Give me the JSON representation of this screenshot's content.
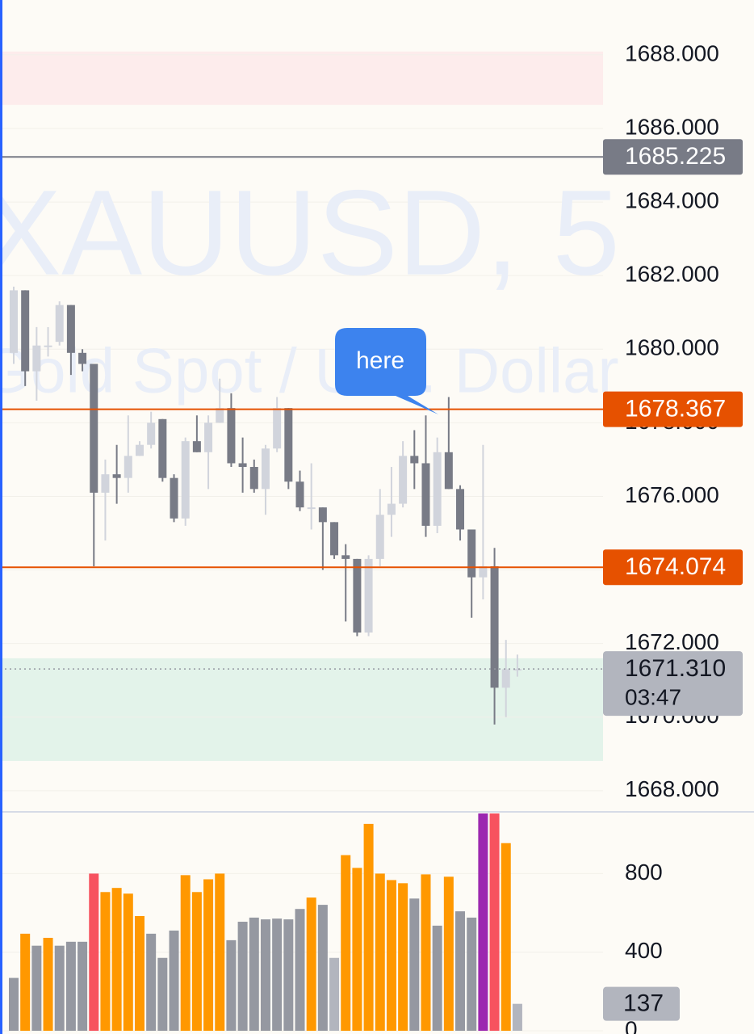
{
  "watermark": {
    "symbol": "XAUUSD, 5",
    "description": "Gold Spot / U.S. Dollar"
  },
  "annotation": "here",
  "chart_data": [
    {
      "type": "candlestick",
      "up_color": "#d1d4dc",
      "down_color": "#787b86",
      "open": [
        1679.9,
        1681.6,
        1679.4,
        1680.1,
        1680.2,
        1681.2,
        1679.9,
        1679.6,
        1676.1,
        1676.6,
        1676.5,
        1677.1,
        1677.4,
        1678.1,
        1676.5,
        1675.4,
        1677.5,
        1677.2,
        1678.0,
        1678.4,
        1676.9,
        1676.8,
        1676.2,
        1677.3,
        1678.4,
        1676.4,
        1675.7,
        1675.7,
        1675.3,
        1674.4,
        1674.3,
        1672.3,
        1674.3,
        1675.5,
        1675.8,
        1677.1,
        1676.9,
        1675.2,
        1677.2,
        1676.2,
        1675.1,
        1673.8,
        1674.1,
        1670.8,
        1671.3
      ],
      "high": [
        1681.7,
        1681.6,
        1680.6,
        1680.6,
        1681.3,
        1681.2,
        1680.0,
        1679.6,
        1677.0,
        1677.4,
        1678.2,
        1677.5,
        1678.3,
        1678.1,
        1676.6,
        1677.6,
        1678.2,
        1678.2,
        1679.2,
        1678.8,
        1677.6,
        1677.0,
        1677.4,
        1678.7,
        1678.4,
        1676.7,
        1676.9,
        1675.7,
        1675.3,
        1674.7,
        1674.3,
        1674.4,
        1676.2,
        1676.8,
        1677.5,
        1677.8,
        1678.2,
        1677.6,
        1678.7,
        1676.3,
        1675.1,
        1677.4,
        1674.6,
        1672.1,
        1671.7
      ],
      "low": [
        1679.6,
        1679.0,
        1678.6,
        1679.8,
        1680.1,
        1679.3,
        1679.4,
        1674.1,
        1674.8,
        1675.8,
        1676.1,
        1677.1,
        1677.3,
        1676.4,
        1675.3,
        1675.2,
        1677.2,
        1676.2,
        1678.0,
        1676.8,
        1676.1,
        1676.1,
        1675.5,
        1677.2,
        1676.2,
        1675.6,
        1675.1,
        1674.0,
        1674.3,
        1672.6,
        1672.2,
        1672.2,
        1674.1,
        1674.9,
        1675.7,
        1676.2,
        1674.9,
        1675.0,
        1676.2,
        1674.8,
        1672.7,
        1673.2,
        1669.8,
        1670.0,
        1671.1
      ],
      "close": [
        1681.6,
        1679.4,
        1680.1,
        1680.1,
        1681.2,
        1679.9,
        1679.6,
        1676.1,
        1676.6,
        1676.5,
        1677.1,
        1677.4,
        1678.0,
        1676.5,
        1675.4,
        1677.5,
        1677.2,
        1678.0,
        1678.4,
        1676.9,
        1676.8,
        1676.2,
        1677.3,
        1678.4,
        1676.4,
        1675.7,
        1675.7,
        1675.3,
        1674.4,
        1674.3,
        1672.3,
        1674.3,
        1675.5,
        1675.8,
        1677.1,
        1676.9,
        1675.2,
        1677.2,
        1676.2,
        1675.1,
        1673.8,
        1674.1,
        1670.8,
        1671.3,
        1671.31
      ],
      "ylim": [
        1667.47,
        1689.49
      ],
      "yticks": [
        {
          "value": 1668,
          "label": "1668.000"
        },
        {
          "value": 1670,
          "label": "1670.000"
        },
        {
          "value": 1672,
          "label": "1672.000"
        },
        {
          "value": 1674,
          "label": "1674.000"
        },
        {
          "value": 1676,
          "label": "1676.000"
        },
        {
          "value": 1678,
          "label": "1678.000"
        },
        {
          "value": 1680,
          "label": "1680.000"
        },
        {
          "value": 1682,
          "label": "1682.000"
        },
        {
          "value": 1684,
          "label": "1684.000"
        },
        {
          "value": 1686,
          "label": "1686.000"
        },
        {
          "value": 1688,
          "label": "1688.000"
        }
      ],
      "grid": true,
      "zones": [
        {
          "from": 1688.09,
          "to": 1686.64,
          "color": "#fdecec"
        },
        {
          "from": 1671.6,
          "to": 1668.81,
          "color": "#e3f3ea"
        }
      ],
      "price_lines": [
        {
          "value": 1685.225,
          "color": "#787b86"
        },
        {
          "value": 1678.367,
          "color": "#e65100"
        },
        {
          "value": 1674.074,
          "color": "#e65100"
        }
      ],
      "last_price": {
        "value": 1671.31,
        "label": "1671.310"
      },
      "countdown": "03:47"
    },
    {
      "type": "bar",
      "values": [
        269,
        494,
        433,
        473,
        433,
        453,
        453,
        800,
        706,
        727,
        698,
        584,
        494,
        371,
        510,
        792,
        706,
        771,
        800,
        461,
        555,
        576,
        567,
        571,
        567,
        620,
        678,
        641,
        371,
        894,
        829,
        1053,
        800,
        767,
        751,
        673,
        796,
        535,
        784,
        608,
        576,
        1150,
        1150,
        955,
        137
      ],
      "colors": [
        "#9598a1",
        "#ff9800",
        "#9598a1",
        "#ff9800",
        "#9598a1",
        "#9598a1",
        "#9598a1",
        "#f7525f",
        "#ff9800",
        "#ff9800",
        "#ff9800",
        "#ff9800",
        "#9598a1",
        "#9598a1",
        "#9598a1",
        "#ff9800",
        "#ff9800",
        "#ff9800",
        "#ff9800",
        "#9598a1",
        "#9598a1",
        "#9598a1",
        "#9598a1",
        "#9598a1",
        "#9598a1",
        "#9598a1",
        "#ff9800",
        "#9598a1",
        "#b2b5be",
        "#ff9800",
        "#ff9800",
        "#ff9800",
        "#ff9800",
        "#ff9800",
        "#ff9800",
        "#9598a1",
        "#ff9800",
        "#9598a1",
        "#ff9800",
        "#9598a1",
        "#9598a1",
        "#9c27b0",
        "#f7525f",
        "#ff9800",
        "#b2b5be"
      ],
      "ylim": [
        0,
        1106
      ],
      "yticks": [
        0,
        400,
        800
      ]
    }
  ]
}
